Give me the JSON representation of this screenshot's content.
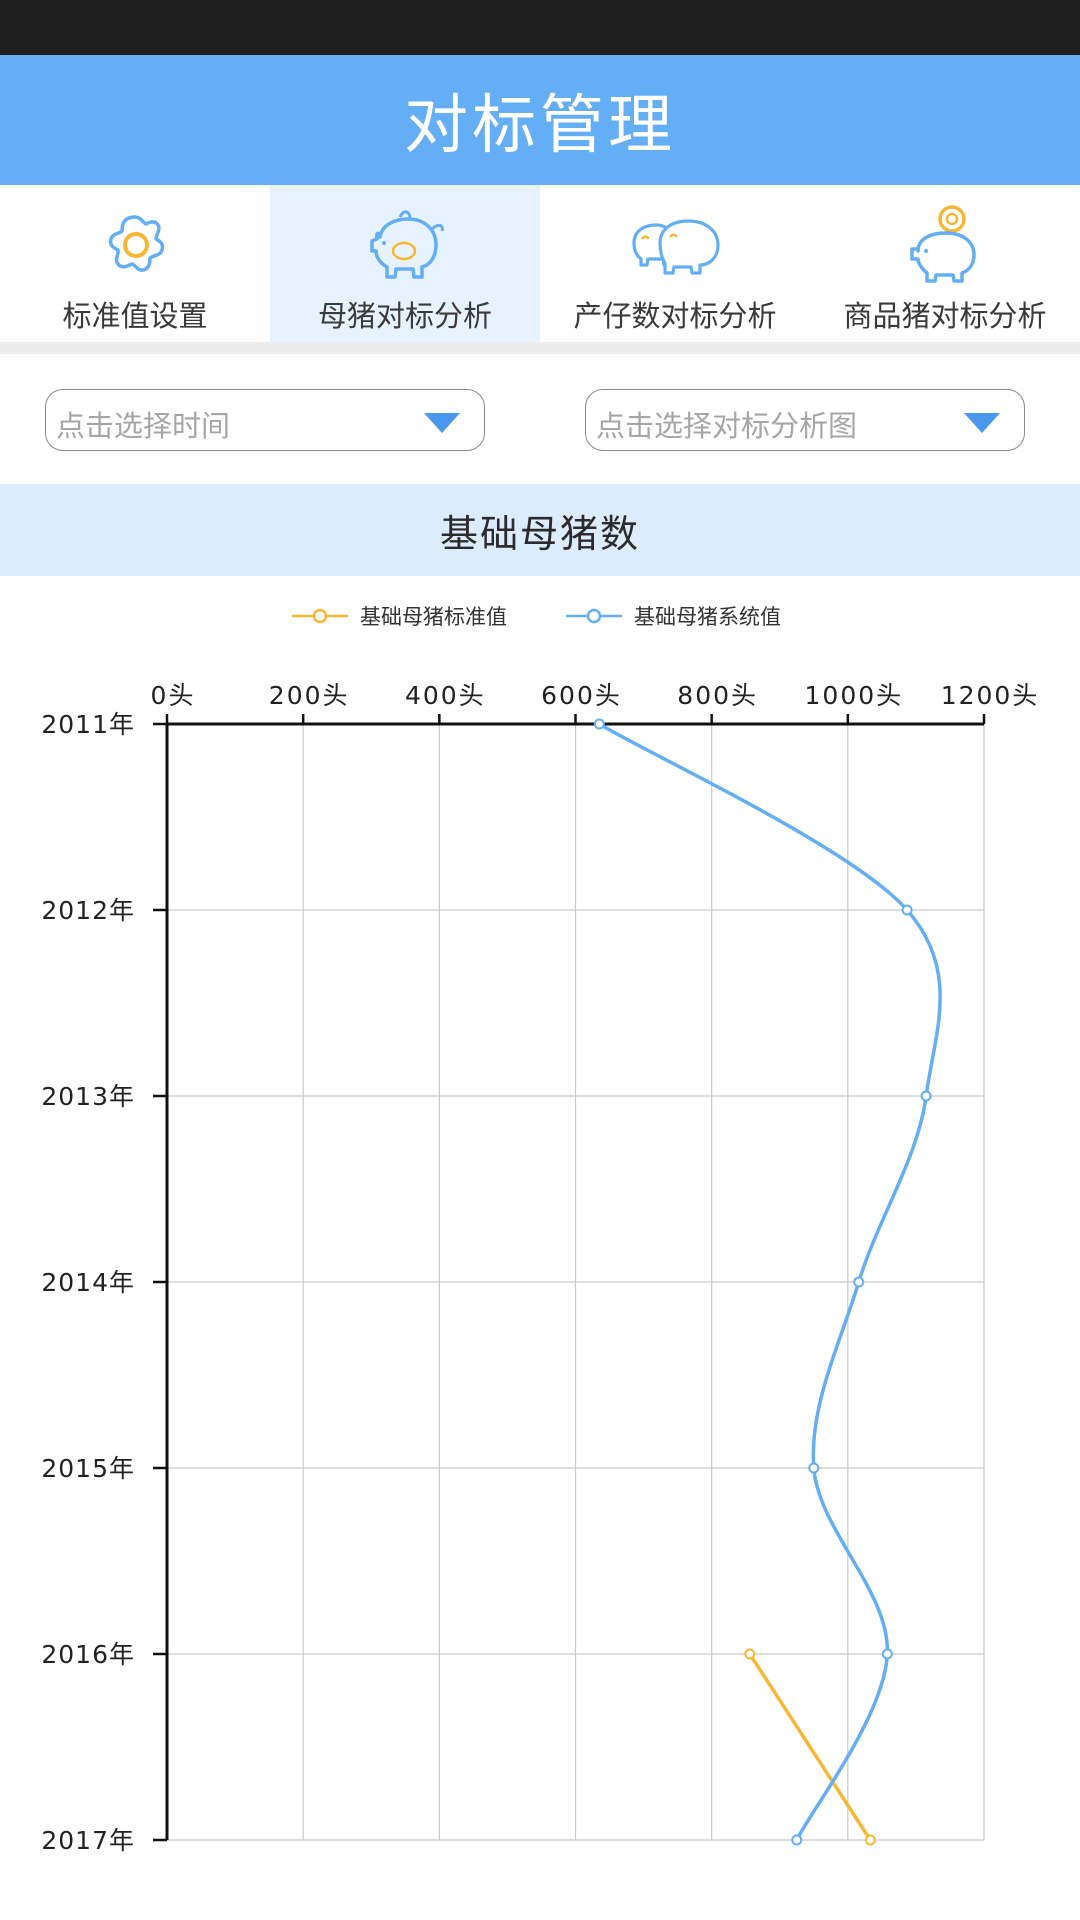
{
  "app": {
    "title": "对标管理"
  },
  "tabs": [
    {
      "label": "标准值设置",
      "icon": "gear-icon",
      "active": false
    },
    {
      "label": "母猪对标分析",
      "icon": "sow-icon",
      "active": true
    },
    {
      "label": "产仔数对标分析",
      "icon": "piglets-icon",
      "active": false
    },
    {
      "label": "商品猪对标分析",
      "icon": "piggy-bank-icon",
      "active": false
    }
  ],
  "filters": {
    "time_placeholder": "点击选择时间",
    "chart_placeholder": "点击选择对标分析图"
  },
  "section": {
    "title": "基础母猪数"
  },
  "colors": {
    "accent": "#63aef5",
    "standard": "#f8b733",
    "system": "#63aef5",
    "caret": "#4a98ee"
  },
  "chart_data": {
    "type": "line",
    "orientation": "horizontal",
    "title": "",
    "categories": [
      "2011年",
      "2012年",
      "2013年",
      "2014年",
      "2015年",
      "2016年",
      "2017年"
    ],
    "x_ticks": [
      "0头",
      "200头",
      "400头",
      "600头",
      "800头",
      "1000头",
      "1200头"
    ],
    "xlim": [
      0,
      1200
    ],
    "grid": true,
    "legend_position": "top",
    "series": [
      {
        "name": "基础母猪标准值",
        "color": "#f8b733",
        "values": [
          null,
          null,
          null,
          null,
          null,
          856,
          1033
        ]
      },
      {
        "name": "基础母猪系统值",
        "color": "#63aef5",
        "smooth": true,
        "values": [
          635,
          1087,
          1115,
          1016,
          950,
          1058,
          925
        ]
      }
    ]
  }
}
